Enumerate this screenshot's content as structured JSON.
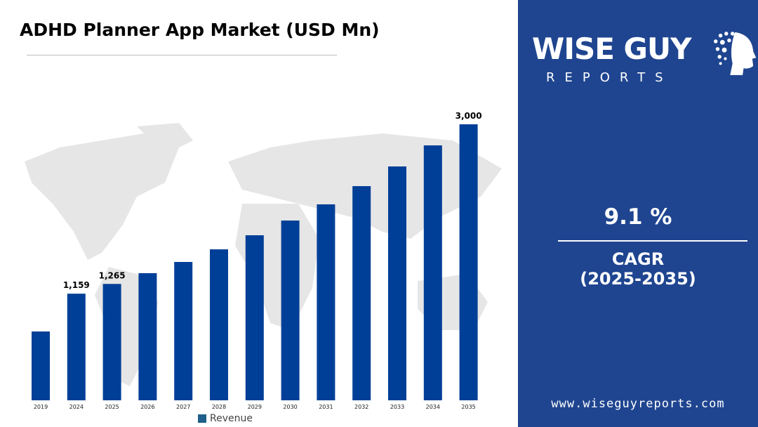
{
  "chart_data": {
    "type": "bar",
    "title": "ADHD Planner App Market (USD Mn)",
    "categories": [
      "2019",
      "2024",
      "2025",
      "2026",
      "2027",
      "2028",
      "2029",
      "2030",
      "2031",
      "2032",
      "2033",
      "2034",
      "2035"
    ],
    "series": [
      {
        "name": "Revenue",
        "values": [
          748,
          1159,
          1265,
          1382,
          1504,
          1641,
          1794,
          1954,
          2130,
          2328,
          2542,
          2771,
          3000
        ]
      }
    ],
    "data_labels": {
      "2024": "1,159",
      "2025": "1,265",
      "2035": "3,000"
    },
    "ylim": [
      0,
      3000
    ],
    "grid": false,
    "legend": "bottom",
    "bar_color": "#003f97",
    "legend_color": "#1f5f8b"
  },
  "sidebar": {
    "logo_line1": "WISE GUY",
    "logo_line2": "REPORTS",
    "cagr_value": "9.1 %",
    "cagr_label": "CAGR",
    "cagr_period": "(2025-2035)",
    "website": "www.wiseguyreports.com",
    "background": "#1f4590"
  }
}
